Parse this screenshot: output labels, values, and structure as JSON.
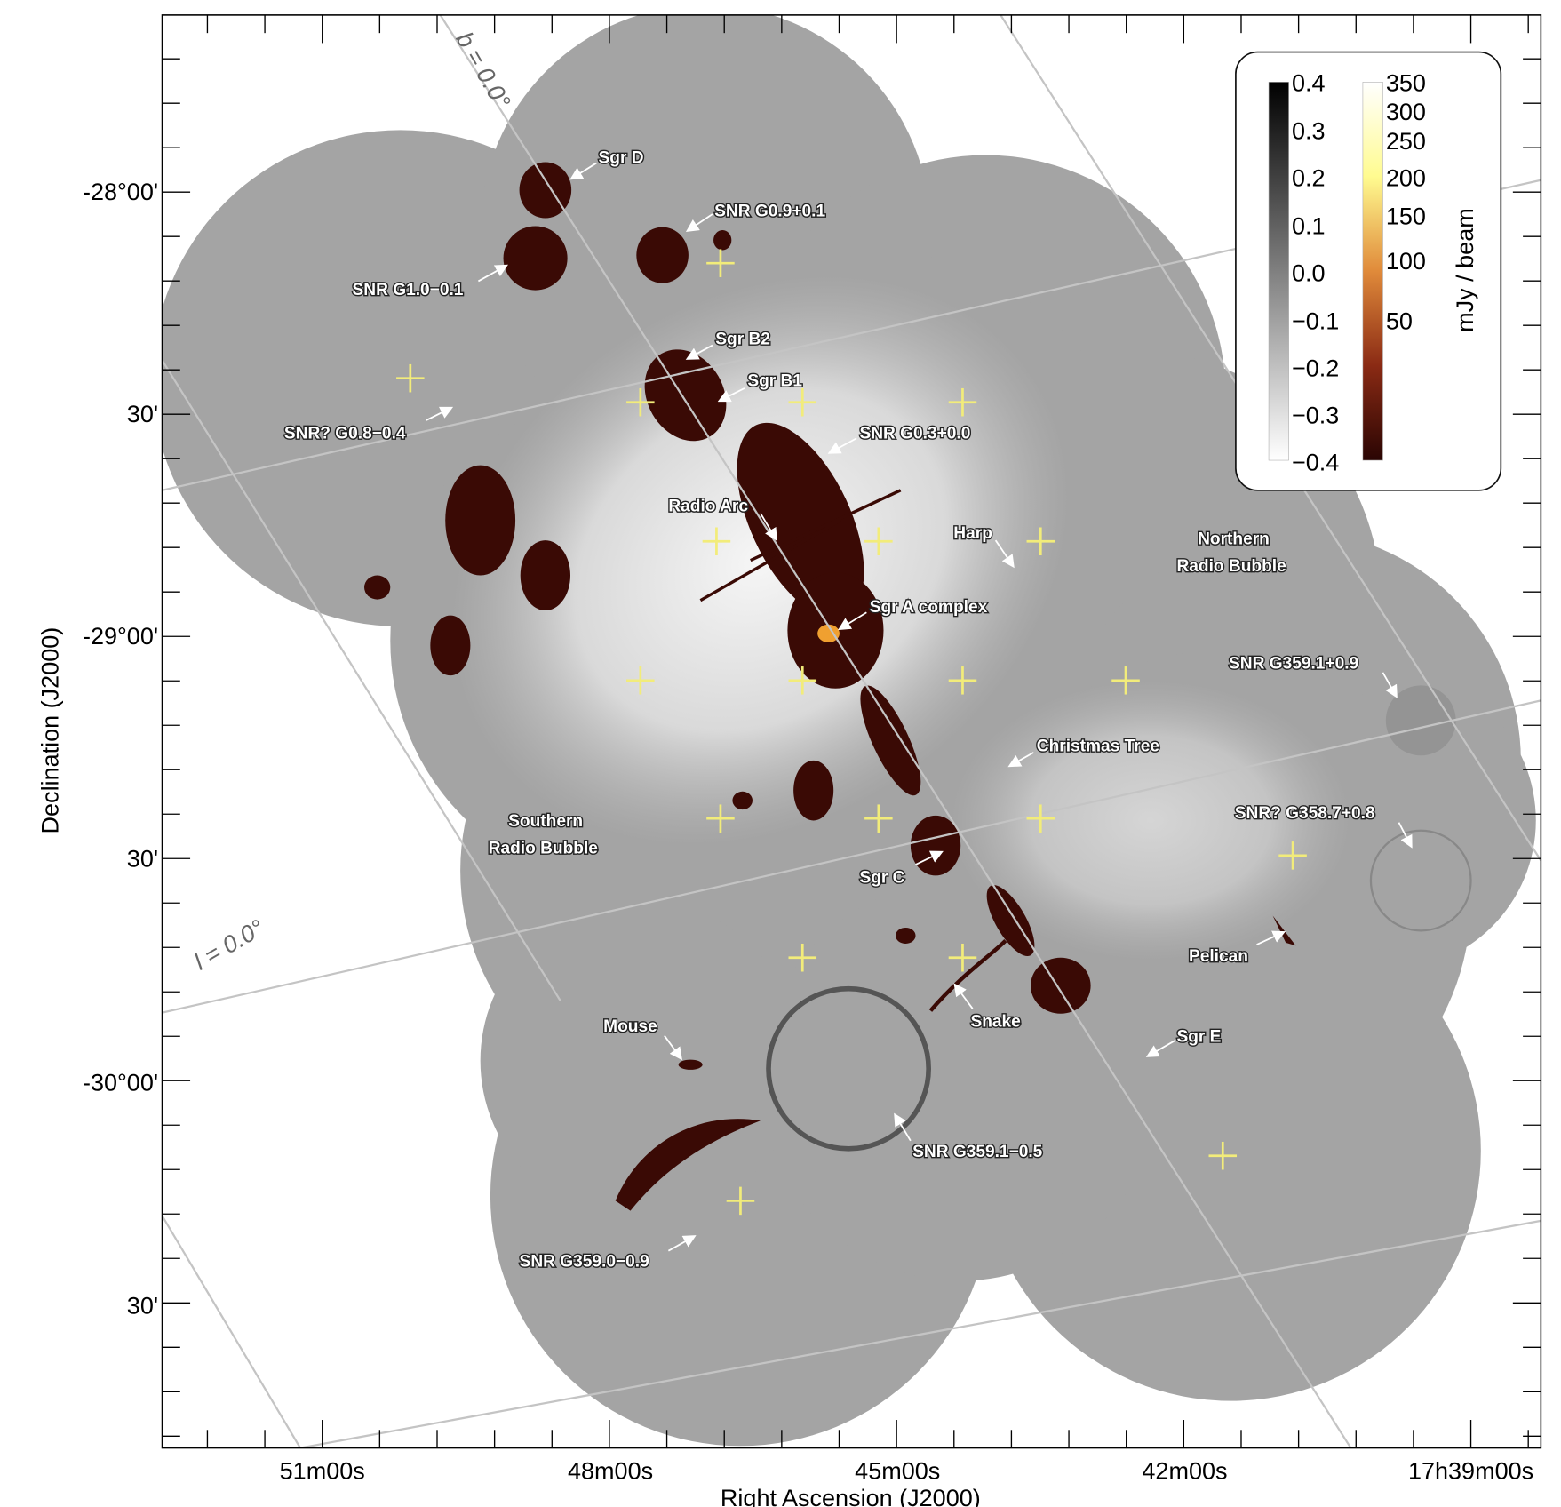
{
  "axes": {
    "xlabel": "Right Ascension (J2000)",
    "ylabel": "Declination (J2000)",
    "x_ticks": [
      "51m00s",
      "48m00s",
      "45m00s",
      "42m00s",
      "17h39m00s"
    ],
    "y_ticks": [
      "-28°00'",
      "30'",
      "-29°00'",
      "30'",
      "-30°00'",
      "30'"
    ]
  },
  "grid_labels": {
    "b": "b = 0.0°",
    "l": "l = 0.0°"
  },
  "colorbar": {
    "unit": "mJy / beam",
    "grey_ticks": [
      "0.4",
      "0.3",
      "0.2",
      "0.1",
      "0.0",
      "−0.1",
      "−0.2",
      "−0.3",
      "−0.4"
    ],
    "color_ticks": [
      "350",
      "300",
      "250",
      "200",
      "150",
      "100",
      "50"
    ],
    "grey_range": [
      -0.4,
      0.4
    ],
    "color_range": [
      0,
      350
    ]
  },
  "annotations": [
    "Sgr D",
    "SNR G0.9+0.1",
    "SNR G1.0−0.1",
    "Sgr B2",
    "Sgr B1",
    "SNR? G0.8−0.4",
    "SNR G0.3+0.0",
    "Radio Arc",
    "Harp",
    "Northern",
    "Radio Bubble",
    "Sgr A complex",
    "SNR G359.1+0.9",
    "Christmas Tree",
    "Southern",
    "Radio Bubble",
    "SNR? G358.7+0.8",
    "Sgr C",
    "Pelican",
    "Snake",
    "Mouse",
    "Sgr E",
    "SNR G359.1−0.5",
    "SNR G359.0−0.9"
  ],
  "colors": {
    "emission": "#3a0a05",
    "sgr_a_core": "#f0a030",
    "crosses": "#f2ec7a",
    "background_map": "#9a9a9a"
  }
}
